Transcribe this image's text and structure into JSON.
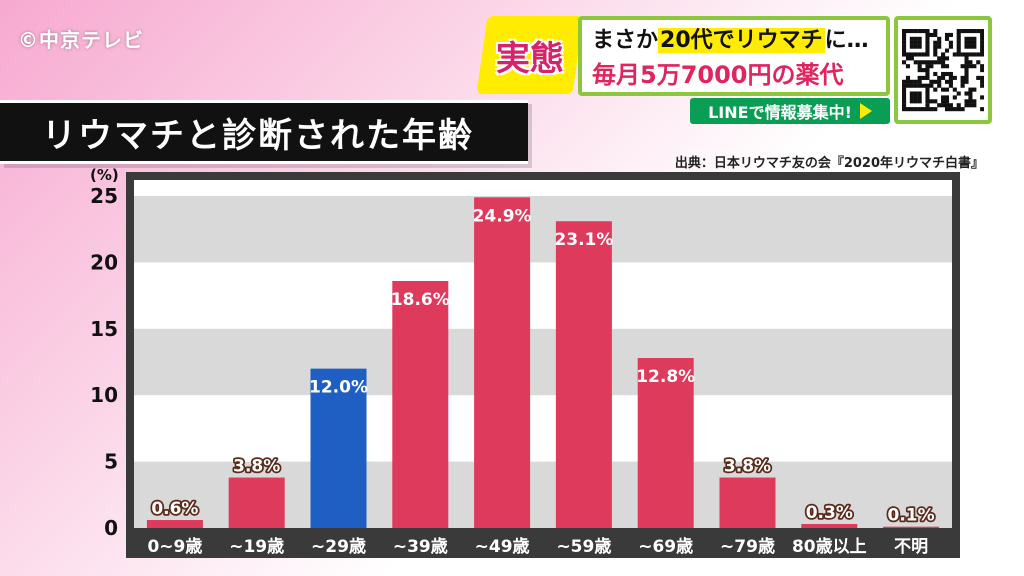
{
  "watermark": "©中京テレビ",
  "banner": {
    "tag": "実態",
    "headline_pre": "まさか",
    "headline_highlight": "20代でリウマチ",
    "headline_post": "に…",
    "headline_line2": "毎月5万7000円の薬代",
    "line_strip": "LINEで情報募集中!"
  },
  "title": "リウマチと診断された年齢",
  "source": "出典：日本リウマチ友の会『2020年リウマチ白書』",
  "colors": {
    "bar": "#de3a5c",
    "bar_highlight": "#1f5fc4",
    "frame": "#3a3a3a",
    "band": "#d9d9d9"
  },
  "chart_data": {
    "type": "bar",
    "categories": [
      "0~9歳",
      "~19歳",
      "~29歳",
      "~39歳",
      "~49歳",
      "~59歳",
      "~69歳",
      "~79歳",
      "80歳以上",
      "不明"
    ],
    "values": [
      0.6,
      3.8,
      12.0,
      18.6,
      24.9,
      23.1,
      12.8,
      3.8,
      0.3,
      0.1
    ],
    "value_labels": [
      "0.6%",
      "3.8%",
      "12.0%",
      "18.6%",
      "24.9%",
      "23.1%",
      "12.8%",
      "3.8%",
      "0.3%",
      "0.1%"
    ],
    "highlight_index": 2,
    "yunit": "(%)",
    "yticks": [
      "0",
      "5",
      "10",
      "15",
      "20",
      "25"
    ],
    "ylim": [
      0,
      25
    ],
    "grid": "alternating horizontal bands",
    "legend": "none"
  }
}
